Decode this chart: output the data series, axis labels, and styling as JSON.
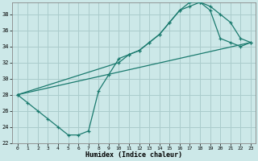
{
  "xlabel": "Humidex (Indice chaleur)",
  "bg_color": "#cce8e8",
  "grid_color": "#aacccc",
  "line_color": "#1a7a6e",
  "xlim": [
    -0.5,
    23.5
  ],
  "ylim": [
    22,
    39.5
  ],
  "xticks": [
    0,
    1,
    2,
    3,
    4,
    5,
    6,
    7,
    8,
    9,
    10,
    11,
    12,
    13,
    14,
    15,
    16,
    17,
    18,
    19,
    20,
    21,
    22,
    23
  ],
  "yticks": [
    22,
    24,
    26,
    28,
    30,
    32,
    34,
    36,
    38
  ],
  "line1_x": [
    0,
    1,
    2,
    3,
    4,
    5,
    6,
    7,
    8,
    9,
    10,
    11,
    12,
    13,
    14,
    15,
    16,
    17,
    18,
    19,
    20,
    21,
    22,
    23
  ],
  "line1_y": [
    28,
    27,
    26,
    25,
    24,
    23,
    23,
    23.5,
    28.5,
    30.5,
    32.5,
    33,
    33.5,
    34.5,
    35.5,
    37,
    38.5,
    39,
    39.5,
    38.5,
    35,
    34.5,
    34,
    34.5
  ],
  "line2_x": [
    0,
    10,
    11,
    12,
    13,
    14,
    15,
    16,
    17,
    18,
    19,
    20,
    21,
    22,
    23
  ],
  "line2_y": [
    28,
    32,
    33,
    33.5,
    34.5,
    35.5,
    37,
    38.5,
    39.5,
    39.5,
    39,
    38,
    37,
    35,
    34.5
  ],
  "line3_x": [
    0,
    23
  ],
  "line3_y": [
    28,
    34.5
  ]
}
